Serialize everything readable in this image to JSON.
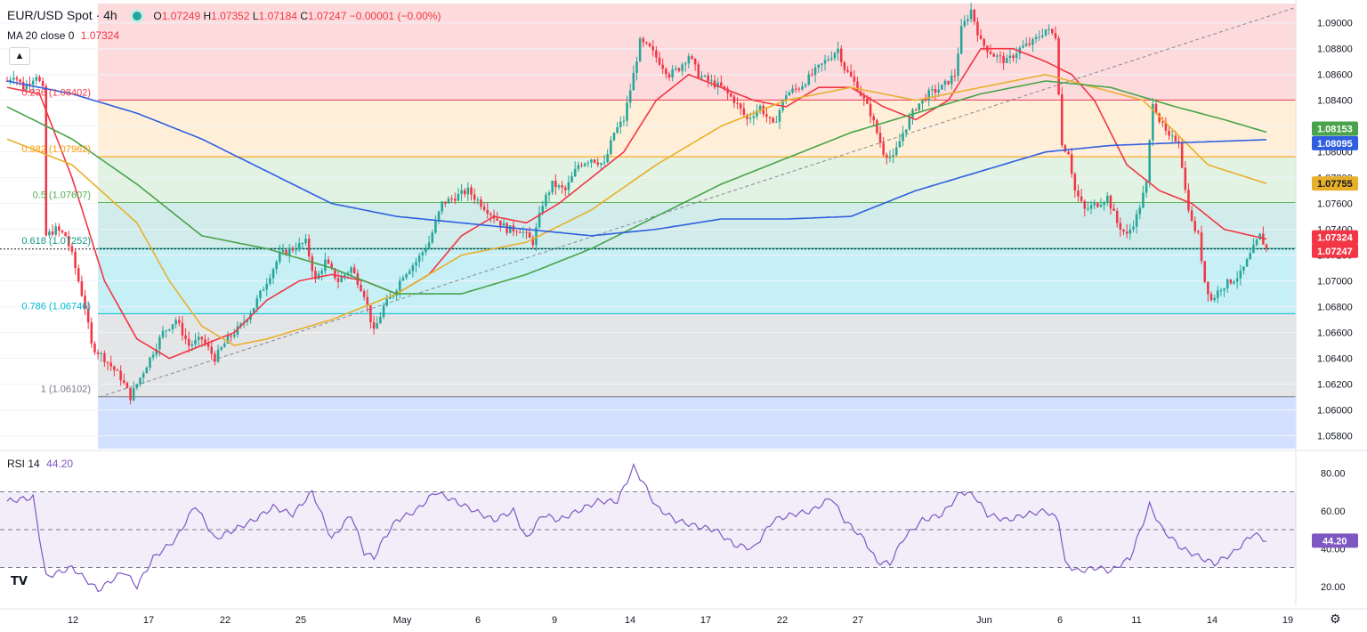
{
  "header": {
    "symbol": "EUR/USD Spot · 4h",
    "ohlc_o_label": "O",
    "ohlc_o": "1.07249",
    "ohlc_h_label": "H",
    "ohlc_h": "1.07352",
    "ohlc_l_label": "L",
    "ohlc_l": "1.07184",
    "ohlc_c_label": "C",
    "ohlc_c": "1.07247",
    "change": "−0.00001 (−0.00%)",
    "ma_label": "MA 20 close 0",
    "ma_value": "1.07324",
    "rsi_label": "RSI 14",
    "rsi_value": "44.20"
  },
  "colors": {
    "up": "#26a69a",
    "down": "#f23645",
    "ma20": "#f23645",
    "ma50": "#e8b02a",
    "ma100": "#4aa34a",
    "ma200": "#2f5fe0",
    "rsi": "#7e57c2",
    "trendline": "#868993"
  },
  "chart_data": {
    "type": "candlestick",
    "price_axis": {
      "ticks": [
        "1.09000",
        "1.08800",
        "1.08600",
        "1.08400",
        "1.08200",
        "1.08000",
        "1.07800",
        "1.07600",
        "1.07400",
        "1.07200",
        "1.07000",
        "1.06800",
        "1.06600",
        "1.06400",
        "1.06200",
        "1.06000",
        "1.05800"
      ],
      "range": [
        1.057,
        1.0915
      ]
    },
    "time_axis": {
      "ticks": [
        "12",
        "17",
        "22",
        "25",
        "May",
        "6",
        "9",
        "14",
        "17",
        "22",
        "27",
        "Jun",
        "6",
        "11",
        "14",
        "19"
      ]
    },
    "fib_levels": [
      {
        "label": "0.236 (1.08402)",
        "value": 1.08402
      },
      {
        "label": "0.382 (1.07962)",
        "value": 1.07962
      },
      {
        "label": "0.5 (1.07607)",
        "value": 1.07607
      },
      {
        "label": "0.618 (1.07252)",
        "value": 1.07252
      },
      {
        "label": "0.786 (1.06746)",
        "value": 1.06746
      },
      {
        "label": "1 (1.06102)",
        "value": 1.06102
      }
    ],
    "price_tags": [
      {
        "text": "1.08153",
        "color": "#4aa34a",
        "value": 1.08153
      },
      {
        "text": "1.08095",
        "color": "#2f5fe0",
        "value": 1.08095
      },
      {
        "text": "1.07755",
        "color": "#e8b02a",
        "value": 1.07755
      },
      {
        "text": "1.07324",
        "color": "#f23645",
        "value": 1.07324
      },
      {
        "text": "1.07247",
        "color": "#f23645",
        "value": 1.07247
      }
    ],
    "ohlc_keypoints": [
      [
        0,
        1.0855
      ],
      [
        2,
        1.086
      ],
      [
        5,
        1.085
      ],
      [
        7,
        1.0855
      ],
      [
        9,
        1.086
      ],
      [
        11,
        1.0848
      ],
      [
        12,
        1.0735
      ],
      [
        15,
        1.074
      ],
      [
        18,
        1.0735
      ],
      [
        20,
        1.072
      ],
      [
        22,
        1.07
      ],
      [
        24,
        1.068
      ],
      [
        26,
        1.065
      ],
      [
        30,
        1.064
      ],
      [
        35,
        1.0625
      ],
      [
        38,
        1.061
      ],
      [
        41,
        1.0625
      ],
      [
        44,
        1.064
      ],
      [
        48,
        1.066
      ],
      [
        52,
        1.067
      ],
      [
        56,
        1.065
      ],
      [
        60,
        1.0655
      ],
      [
        64,
        1.064
      ],
      [
        68,
        1.0655
      ],
      [
        72,
        1.0665
      ],
      [
        76,
        1.068
      ],
      [
        80,
        1.07
      ],
      [
        84,
        1.072
      ],
      [
        88,
        1.0725
      ],
      [
        92,
        1.073
      ],
      [
        95,
        1.07
      ],
      [
        98,
        1.0715
      ],
      [
        102,
        1.07
      ],
      [
        106,
        1.071
      ],
      [
        110,
        1.069
      ],
      [
        113,
        1.066
      ],
      [
        116,
        1.068
      ],
      [
        119,
        1.069
      ],
      [
        122,
        1.0705
      ],
      [
        126,
        1.0715
      ],
      [
        130,
        1.073
      ],
      [
        134,
        1.076
      ],
      [
        138,
        1.0765
      ],
      [
        142,
        1.077
      ],
      [
        146,
        1.076
      ],
      [
        150,
        1.075
      ],
      [
        154,
        1.074
      ],
      [
        158,
        1.074
      ],
      [
        162,
        1.073
      ],
      [
        165,
        1.076
      ],
      [
        168,
        1.0775
      ],
      [
        172,
        1.077
      ],
      [
        176,
        1.079
      ],
      [
        180,
        1.0795
      ],
      [
        184,
        1.079
      ],
      [
        187,
        1.0815
      ],
      [
        190,
        1.0825
      ],
      [
        193,
        1.086
      ],
      [
        195,
        1.0885
      ],
      [
        198,
        1.088
      ],
      [
        201,
        1.087
      ],
      [
        204,
        1.086
      ],
      [
        207,
        1.0865
      ],
      [
        210,
        1.0875
      ],
      [
        213,
        1.086
      ],
      [
        216,
        1.0855
      ],
      [
        220,
        1.085
      ],
      [
        224,
        1.084
      ],
      [
        228,
        1.0825
      ],
      [
        232,
        1.0835
      ],
      [
        236,
        1.082
      ],
      [
        240,
        1.0845
      ],
      [
        244,
        1.085
      ],
      [
        248,
        1.086
      ],
      [
        252,
        1.087
      ],
      [
        256,
        1.088
      ],
      [
        258,
        1.0865
      ],
      [
        262,
        1.085
      ],
      [
        266,
        1.083
      ],
      [
        270,
        1.08
      ],
      [
        273,
        1.0795
      ],
      [
        276,
        1.0815
      ],
      [
        280,
        1.0835
      ],
      [
        284,
        1.0845
      ],
      [
        288,
        1.085
      ],
      [
        292,
        1.086
      ],
      [
        294,
        1.0895
      ],
      [
        297,
        1.091
      ],
      [
        300,
        1.0885
      ],
      [
        304,
        1.0875
      ],
      [
        308,
        1.087
      ],
      [
        312,
        1.088
      ],
      [
        316,
        1.0885
      ],
      [
        320,
        1.0895
      ],
      [
        323,
        1.089
      ],
      [
        325,
        1.0805
      ],
      [
        327,
        1.08
      ],
      [
        329,
        1.077
      ],
      [
        332,
        1.0755
      ],
      [
        336,
        1.076
      ],
      [
        339,
        1.0765
      ],
      [
        342,
        1.0745
      ],
      [
        345,
        1.0735
      ],
      [
        348,
        1.075
      ],
      [
        351,
        1.0775
      ],
      [
        353,
        1.084
      ],
      [
        355,
        1.0825
      ],
      [
        358,
        1.081
      ],
      [
        361,
        1.081
      ],
      [
        363,
        1.077
      ],
      [
        365,
        1.0745
      ],
      [
        367,
        1.0735
      ],
      [
        369,
        1.07
      ],
      [
        371,
        1.0685
      ],
      [
        374,
        1.0695
      ],
      [
        377,
        1.07
      ],
      [
        380,
        1.0705
      ],
      [
        383,
        1.072
      ],
      [
        386,
        1.0735
      ],
      [
        388,
        1.07247
      ]
    ],
    "indicators": [
      {
        "name": "MA 20 close 0",
        "color": "#f23645",
        "points": [
          [
            0,
            1.085
          ],
          [
            10,
            1.0845
          ],
          [
            20,
            1.078
          ],
          [
            30,
            1.07
          ],
          [
            40,
            1.0655
          ],
          [
            50,
            1.064
          ],
          [
            60,
            1.065
          ],
          [
            70,
            1.066
          ],
          [
            80,
            1.0685
          ],
          [
            90,
            1.07
          ],
          [
            100,
            1.0705
          ],
          [
            110,
            1.07
          ],
          [
            120,
            1.069
          ],
          [
            130,
            1.0705
          ],
          [
            140,
            1.0735
          ],
          [
            150,
            1.075
          ],
          [
            160,
            1.0745
          ],
          [
            170,
            1.076
          ],
          [
            180,
            1.078
          ],
          [
            190,
            1.08
          ],
          [
            200,
            1.084
          ],
          [
            210,
            1.086
          ],
          [
            220,
            1.085
          ],
          [
            230,
            1.084
          ],
          [
            240,
            1.0835
          ],
          [
            250,
            1.085
          ],
          [
            260,
            1.085
          ],
          [
            270,
            1.0835
          ],
          [
            280,
            1.0825
          ],
          [
            290,
            1.084
          ],
          [
            300,
            1.088
          ],
          [
            310,
            1.088
          ],
          [
            320,
            1.087
          ],
          [
            328,
            1.086
          ],
          [
            335,
            1.084
          ],
          [
            345,
            1.079
          ],
          [
            355,
            1.077
          ],
          [
            365,
            1.076
          ],
          [
            375,
            1.074
          ],
          [
            388,
            1.07324
          ]
        ]
      },
      {
        "name": "MA 50",
        "color": "#e8b02a",
        "points": [
          [
            0,
            1.081
          ],
          [
            20,
            1.079
          ],
          [
            40,
            1.0745
          ],
          [
            50,
            1.07
          ],
          [
            60,
            1.0665
          ],
          [
            70,
            1.065
          ],
          [
            80,
            1.0655
          ],
          [
            100,
            1.067
          ],
          [
            120,
            1.069
          ],
          [
            140,
            1.072
          ],
          [
            160,
            1.073
          ],
          [
            180,
            1.0755
          ],
          [
            200,
            1.079
          ],
          [
            220,
            1.082
          ],
          [
            240,
            1.084
          ],
          [
            260,
            1.085
          ],
          [
            280,
            1.084
          ],
          [
            300,
            1.085
          ],
          [
            320,
            1.086
          ],
          [
            335,
            1.085
          ],
          [
            350,
            1.084
          ],
          [
            360,
            1.0815
          ],
          [
            370,
            1.079
          ],
          [
            388,
            1.07755
          ]
        ]
      },
      {
        "name": "MA 100",
        "color": "#4aa34a",
        "points": [
          [
            0,
            1.0835
          ],
          [
            20,
            1.081
          ],
          [
            40,
            1.0775
          ],
          [
            60,
            1.0735
          ],
          [
            80,
            1.0725
          ],
          [
            100,
            1.071
          ],
          [
            120,
            1.069
          ],
          [
            140,
            1.069
          ],
          [
            160,
            1.0705
          ],
          [
            180,
            1.0725
          ],
          [
            200,
            1.075
          ],
          [
            220,
            1.0775
          ],
          [
            240,
            1.0795
          ],
          [
            260,
            1.0815
          ],
          [
            280,
            1.083
          ],
          [
            300,
            1.0845
          ],
          [
            320,
            1.0855
          ],
          [
            340,
            1.085
          ],
          [
            360,
            1.0835
          ],
          [
            375,
            1.0825
          ],
          [
            388,
            1.08153
          ]
        ]
      },
      {
        "name": "MA 200",
        "color": "#2f5fe0",
        "points": [
          [
            0,
            1.0855
          ],
          [
            20,
            1.0845
          ],
          [
            40,
            1.083
          ],
          [
            60,
            1.081
          ],
          [
            80,
            1.0785
          ],
          [
            100,
            1.076
          ],
          [
            120,
            1.075
          ],
          [
            140,
            1.0745
          ],
          [
            160,
            1.074
          ],
          [
            180,
            1.0735
          ],
          [
            200,
            1.074
          ],
          [
            220,
            1.0748
          ],
          [
            240,
            1.0748
          ],
          [
            260,
            1.075
          ],
          [
            280,
            1.077
          ],
          [
            300,
            1.0785
          ],
          [
            320,
            1.08
          ],
          [
            340,
            1.0805
          ],
          [
            360,
            1.0807
          ],
          [
            388,
            1.08095
          ]
        ]
      }
    ],
    "rsi": {
      "name": "RSI 14",
      "levels": [
        70,
        50,
        30
      ],
      "axis_ticks": [
        "80.00",
        "60.00",
        "40.00",
        "20.00"
      ],
      "range": [
        10,
        90
      ],
      "points": [
        [
          0,
          65
        ],
        [
          8,
          67
        ],
        [
          12,
          25
        ],
        [
          20,
          30
        ],
        [
          28,
          18
        ],
        [
          36,
          28
        ],
        [
          40,
          20
        ],
        [
          45,
          35
        ],
        [
          52,
          45
        ],
        [
          58,
          63
        ],
        [
          64,
          45
        ],
        [
          70,
          50
        ],
        [
          76,
          55
        ],
        [
          82,
          62
        ],
        [
          88,
          58
        ],
        [
          94,
          70
        ],
        [
          100,
          45
        ],
        [
          106,
          58
        ],
        [
          110,
          38
        ],
        [
          113,
          35
        ],
        [
          116,
          45
        ],
        [
          120,
          55
        ],
        [
          126,
          60
        ],
        [
          132,
          70
        ],
        [
          138,
          65
        ],
        [
          144,
          60
        ],
        [
          150,
          55
        ],
        [
          156,
          60
        ],
        [
          160,
          45
        ],
        [
          165,
          58
        ],
        [
          170,
          55
        ],
        [
          176,
          60
        ],
        [
          182,
          65
        ],
        [
          188,
          65
        ],
        [
          193,
          83
        ],
        [
          196,
          75
        ],
        [
          200,
          62
        ],
        [
          206,
          55
        ],
        [
          212,
          52
        ],
        [
          218,
          50
        ],
        [
          224,
          42
        ],
        [
          230,
          40
        ],
        [
          236,
          55
        ],
        [
          242,
          58
        ],
        [
          248,
          60
        ],
        [
          254,
          67
        ],
        [
          258,
          55
        ],
        [
          264,
          45
        ],
        [
          268,
          33
        ],
        [
          272,
          32
        ],
        [
          276,
          45
        ],
        [
          282,
          55
        ],
        [
          288,
          58
        ],
        [
          294,
          70
        ],
        [
          298,
          68
        ],
        [
          302,
          58
        ],
        [
          308,
          55
        ],
        [
          314,
          58
        ],
        [
          320,
          60
        ],
        [
          324,
          55
        ],
        [
          326,
          32
        ],
        [
          330,
          28
        ],
        [
          336,
          30
        ],
        [
          340,
          28
        ],
        [
          346,
          35
        ],
        [
          352,
          63
        ],
        [
          356,
          50
        ],
        [
          362,
          40
        ],
        [
          368,
          35
        ],
        [
          372,
          32
        ],
        [
          378,
          38
        ],
        [
          384,
          48
        ],
        [
          388,
          44.2
        ]
      ]
    }
  }
}
